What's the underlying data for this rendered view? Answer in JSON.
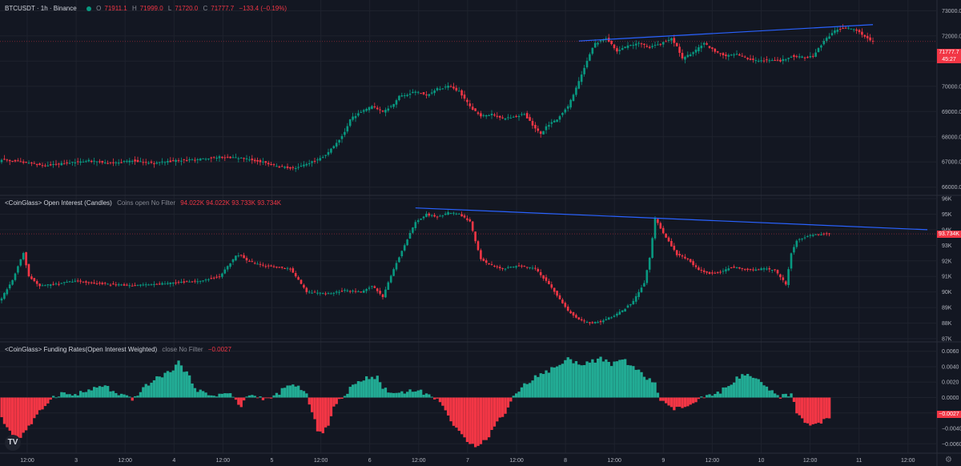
{
  "main": {
    "symbol": "BTCUSDT · 1h · Binance",
    "ohlc": {
      "o_label": "O",
      "o": "71911.1",
      "h_label": "H",
      "h": "71999.0",
      "l_label": "L",
      "l": "71720.0",
      "c_label": "C",
      "c": "71777.7",
      "change": "−133.4 (−0.19%)"
    },
    "price_tag": "71777.7",
    "countdown": "45:27",
    "y_ticks": [
      "73000.0",
      "72000.0",
      "71000.0",
      "70000.0",
      "69000.0",
      "68000.0",
      "67000.0",
      "66000.0"
    ]
  },
  "oi": {
    "title": "<CoinGlass> Open Interest (Candles)",
    "params": "Coins open No Filter",
    "values": "94.022K 94.022K 93.733K 93.734K",
    "price_tag": "93.734K",
    "y_ticks": [
      "96K",
      "95K",
      "94K",
      "93K",
      "92K",
      "91K",
      "90K",
      "89K",
      "88K",
      "87K"
    ]
  },
  "fr": {
    "title": "<CoinGlass> Funding Rates(Open Interest Weighted)",
    "params": "close No Filter",
    "value": "−0.0027",
    "price_tag": "−0.0027",
    "y_ticks": [
      "0.0060",
      "0.0040",
      "0.0020",
      "0.0000",
      "−0.0020",
      "−0.0040",
      "−0.0060"
    ]
  },
  "x_axis": {
    "labels": [
      "12:00",
      "3",
      "12:00",
      "4",
      "12:00",
      "5",
      "12:00",
      "6",
      "12:00",
      "7",
      "12:00",
      "8",
      "12:00",
      "9",
      "12:00",
      "10",
      "12:00",
      "11",
      "12:00"
    ]
  },
  "logo": "TV",
  "colors": {
    "up": "#089981",
    "down": "#f23645",
    "fr_up": "#22ab94",
    "fr_down": "#f23645",
    "trendline": "#2962ff",
    "bg": "#131722",
    "grid": "#1e222d"
  },
  "chart_data": [
    {
      "type": "candlestick",
      "name": "BTCUSDT 1h",
      "ylim": [
        65800,
        73300
      ],
      "x_labels": [
        "12:00",
        "3",
        "12:00",
        "4",
        "12:00",
        "5",
        "12:00",
        "6",
        "12:00",
        "7",
        "12:00",
        "8",
        "12:00",
        "9",
        "12:00"
      ],
      "close_path": [
        [
          0,
          67100
        ],
        [
          8,
          67000
        ],
        [
          16,
          66850
        ],
        [
          24,
          66950
        ],
        [
          32,
          67050
        ],
        [
          40,
          66950
        ],
        [
          48,
          67050
        ],
        [
          56,
          66950
        ],
        [
          64,
          67050
        ],
        [
          72,
          67100
        ],
        [
          80,
          67200
        ],
        [
          88,
          67150
        ],
        [
          96,
          67000
        ],
        [
          102,
          66800
        ],
        [
          108,
          66750
        ],
        [
          112,
          66900
        ],
        [
          118,
          67200
        ],
        [
          122,
          67600
        ],
        [
          126,
          68200
        ],
        [
          128,
          68700
        ],
        [
          132,
          69000
        ],
        [
          136,
          69200
        ],
        [
          140,
          69000
        ],
        [
          144,
          69300
        ],
        [
          146,
          69600
        ],
        [
          150,
          69700
        ],
        [
          152,
          69800
        ],
        [
          156,
          69650
        ],
        [
          160,
          69900
        ],
        [
          164,
          70000
        ],
        [
          168,
          69800
        ],
        [
          172,
          69200
        ],
        [
          176,
          68800
        ],
        [
          180,
          68900
        ],
        [
          184,
          68700
        ],
        [
          188,
          68800
        ],
        [
          192,
          68900
        ],
        [
          196,
          68300
        ],
        [
          198,
          68100
        ],
        [
          200,
          68400
        ],
        [
          204,
          68700
        ],
        [
          208,
          69200
        ],
        [
          212,
          70200
        ],
        [
          216,
          71300
        ],
        [
          218,
          71700
        ],
        [
          222,
          71900
        ],
        [
          226,
          71400
        ],
        [
          230,
          71600
        ],
        [
          234,
          71700
        ],
        [
          238,
          71550
        ],
        [
          242,
          71700
        ],
        [
          246,
          71900
        ],
        [
          248,
          71600
        ],
        [
          250,
          71100
        ],
        [
          254,
          71350
        ],
        [
          258,
          71700
        ],
        [
          262,
          71400
        ],
        [
          266,
          71200
        ],
        [
          270,
          71300
        ],
        [
          274,
          71100
        ],
        [
          278,
          71000
        ],
        [
          282,
          71050
        ],
        [
          286,
          71000
        ],
        [
          290,
          71200
        ],
        [
          294,
          71150
        ],
        [
          298,
          71200
        ],
        [
          302,
          71800
        ],
        [
          306,
          72200
        ],
        [
          310,
          72350
        ],
        [
          314,
          72200
        ],
        [
          318,
          71900
        ],
        [
          320,
          71780
        ]
      ],
      "trendline": [
        [
          212,
          71800
        ],
        [
          320,
          72450
        ]
      ]
    },
    {
      "type": "candlestick",
      "name": "Open Interest (Candles)",
      "ylim": [
        87000,
        96000
      ],
      "close_path": [
        [
          0,
          89600
        ],
        [
          4,
          90800
        ],
        [
          8,
          92500
        ],
        [
          10,
          91000
        ],
        [
          14,
          90400
        ],
        [
          20,
          90500
        ],
        [
          26,
          90700
        ],
        [
          32,
          90600
        ],
        [
          40,
          90500
        ],
        [
          48,
          90400
        ],
        [
          56,
          90500
        ],
        [
          64,
          90600
        ],
        [
          72,
          90700
        ],
        [
          80,
          91000
        ],
        [
          86,
          92300
        ],
        [
          88,
          92400
        ],
        [
          90,
          92000
        ],
        [
          96,
          91700
        ],
        [
          106,
          91500
        ],
        [
          112,
          90000
        ],
        [
          120,
          89900
        ],
        [
          126,
          90100
        ],
        [
          132,
          90000
        ],
        [
          136,
          90400
        ],
        [
          140,
          89700
        ],
        [
          144,
          91500
        ],
        [
          148,
          93000
        ],
        [
          152,
          94500
        ],
        [
          156,
          95000
        ],
        [
          160,
          94800
        ],
        [
          164,
          95100
        ],
        [
          168,
          95000
        ],
        [
          172,
          94500
        ],
        [
          176,
          92100
        ],
        [
          180,
          91700
        ],
        [
          184,
          91500
        ],
        [
          190,
          91700
        ],
        [
          196,
          91500
        ],
        [
          200,
          90700
        ],
        [
          204,
          89800
        ],
        [
          208,
          88800
        ],
        [
          212,
          88200
        ],
        [
          216,
          88000
        ],
        [
          220,
          88100
        ],
        [
          224,
          88400
        ],
        [
          228,
          88800
        ],
        [
          232,
          89400
        ],
        [
          236,
          90600
        ],
        [
          238,
          92200
        ],
        [
          240,
          94700
        ],
        [
          244,
          93500
        ],
        [
          248,
          92400
        ],
        [
          252,
          92100
        ],
        [
          256,
          91400
        ],
        [
          260,
          91200
        ],
        [
          264,
          91300
        ],
        [
          268,
          91600
        ],
        [
          272,
          91500
        ],
        [
          276,
          91400
        ],
        [
          280,
          91500
        ],
        [
          284,
          91400
        ],
        [
          288,
          90500
        ],
        [
          290,
          92500
        ],
        [
          292,
          93300
        ],
        [
          296,
          93600
        ],
        [
          300,
          93700
        ],
        [
          304,
          93734
        ]
      ],
      "trendline": [
        [
          152,
          95400
        ],
        [
          340,
          94000
        ]
      ]
    },
    {
      "type": "bar",
      "name": "Funding Rates (Open Interest Weighted)",
      "ylim": [
        -0.0068,
        0.0068
      ],
      "keypoints": [
        [
          0,
          -0.0028
        ],
        [
          3,
          -0.0043
        ],
        [
          6,
          -0.006
        ],
        [
          8,
          -0.0045
        ],
        [
          10,
          -0.0038
        ],
        [
          13,
          -0.0024
        ],
        [
          16,
          -0.001
        ],
        [
          18,
          -0.0001
        ],
        [
          22,
          0.0006
        ],
        [
          26,
          0.0003
        ],
        [
          30,
          0.0007
        ],
        [
          34,
          0.0011
        ],
        [
          38,
          0.0016
        ],
        [
          42,
          0.0004
        ],
        [
          46,
          0.0001
        ],
        [
          48,
          -0.0004
        ],
        [
          50,
          0.0005
        ],
        [
          54,
          0.0018
        ],
        [
          58,
          0.0027
        ],
        [
          62,
          0.0034
        ],
        [
          65,
          0.0046
        ],
        [
          68,
          0.0031
        ],
        [
          72,
          0.001
        ],
        [
          76,
          0.0003
        ],
        [
          80,
          0.0004
        ],
        [
          84,
          0.0006
        ],
        [
          86,
          -0.0005
        ],
        [
          88,
          -0.0013
        ],
        [
          90,
          0.0003
        ],
        [
          94,
          0.0001
        ],
        [
          98,
          -0.0002
        ],
        [
          100,
          0.0001
        ],
        [
          104,
          0.0012
        ],
        [
          108,
          0.0017
        ],
        [
          112,
          0.0004
        ],
        [
          114,
          -0.0021
        ],
        [
          116,
          -0.0041
        ],
        [
          118,
          -0.0044
        ],
        [
          120,
          -0.0036
        ],
        [
          122,
          -0.0013
        ],
        [
          126,
          0.0004
        ],
        [
          130,
          0.0018
        ],
        [
          134,
          0.0027
        ],
        [
          138,
          0.0026
        ],
        [
          140,
          0.0013
        ],
        [
          144,
          0.0005
        ],
        [
          148,
          0.0008
        ],
        [
          152,
          0.001
        ],
        [
          156,
          0.0005
        ],
        [
          158,
          0.0001
        ],
        [
          162,
          -0.0008
        ],
        [
          166,
          -0.0038
        ],
        [
          170,
          -0.0053
        ],
        [
          174,
          -0.0062
        ],
        [
          178,
          -0.0055
        ],
        [
          182,
          -0.0032
        ],
        [
          186,
          -0.0014
        ],
        [
          188,
          0.0003
        ],
        [
          192,
          0.0016
        ],
        [
          196,
          0.0027
        ],
        [
          200,
          0.0033
        ],
        [
          204,
          0.0041
        ],
        [
          208,
          0.005
        ],
        [
          212,
          0.0044
        ],
        [
          216,
          0.0046
        ],
        [
          220,
          0.005
        ],
        [
          224,
          0.0043
        ],
        [
          228,
          0.005
        ],
        [
          232,
          0.004
        ],
        [
          236,
          0.0027
        ],
        [
          240,
          0.0019
        ],
        [
          242,
          -0.0004
        ],
        [
          246,
          -0.0015
        ],
        [
          250,
          -0.0013
        ],
        [
          254,
          -0.0009
        ],
        [
          258,
          0.0001
        ],
        [
          262,
          0.0003
        ],
        [
          266,
          0.0013
        ],
        [
          270,
          0.0025
        ],
        [
          274,
          0.003
        ],
        [
          278,
          0.0021
        ],
        [
          282,
          0.0009
        ],
        [
          286,
          0.0001
        ],
        [
          290,
          0.0005
        ],
        [
          292,
          -0.0021
        ],
        [
          296,
          -0.0034
        ],
        [
          300,
          -0.0033
        ],
        [
          304,
          -0.0027
        ]
      ]
    }
  ]
}
